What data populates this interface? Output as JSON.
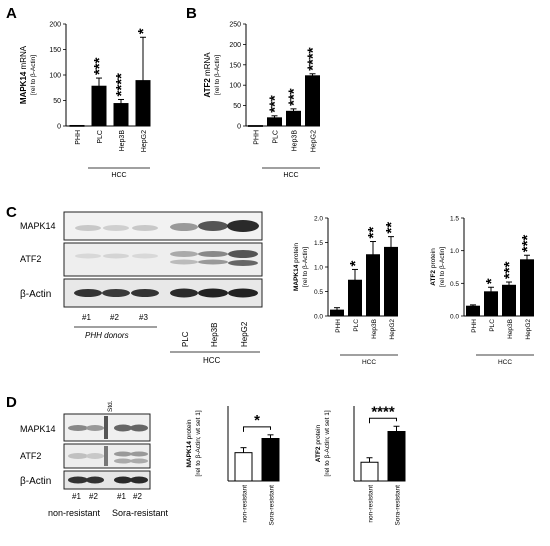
{
  "panels": {
    "A": "A",
    "B": "B",
    "C": "C",
    "D": "D"
  },
  "chart_data": [
    {
      "id": "A",
      "type": "bar",
      "ylabel_bold": "MAPK14",
      "ylabel_rest": " mRNA",
      "ylabel_sub": "[rel to β-Actin]",
      "categories": [
        "PHH",
        "PLC",
        "Hep3B",
        "HepG2"
      ],
      "values": [
        1,
        78,
        44,
        89
      ],
      "errors": [
        0,
        16,
        8,
        85
      ],
      "significance": [
        "",
        "***",
        "****",
        "*"
      ],
      "yticks": [
        0,
        50,
        100,
        150,
        200
      ],
      "ylim": [
        0,
        200
      ],
      "group_label": "HCC"
    },
    {
      "id": "B",
      "type": "bar",
      "ylabel_bold": "ATF2",
      "ylabel_rest": " mRNA",
      "ylabel_sub": "[rel to β-Actin]",
      "categories": [
        "PHH",
        "PLC",
        "Hep3B",
        "HepG2"
      ],
      "values": [
        1,
        20,
        36,
        123
      ],
      "errors": [
        0,
        5,
        6,
        5
      ],
      "significance": [
        "",
        "***",
        "***",
        "****"
      ],
      "yticks": [
        0,
        50,
        100,
        150,
        200,
        250
      ],
      "ylim": [
        0,
        250
      ],
      "group_label": "HCC"
    },
    {
      "id": "C1",
      "type": "bar",
      "ylabel_bold": "MAPK14",
      "ylabel_rest": " protein",
      "ylabel_sub": "[rel to β-Actin]",
      "categories": [
        "PHH",
        "PLC",
        "Hep3B",
        "HepG2"
      ],
      "values": [
        0.12,
        0.73,
        1.25,
        1.4
      ],
      "errors": [
        0.05,
        0.22,
        0.27,
        0.22
      ],
      "significance": [
        "",
        "*",
        "**",
        "**"
      ],
      "yticks": [
        "0.0",
        "0.5",
        "1.0",
        "1.5",
        "2.0"
      ],
      "ylim": [
        0,
        2
      ],
      "group_label": "HCC"
    },
    {
      "id": "C2",
      "type": "bar",
      "ylabel_bold": "ATF2",
      "ylabel_rest": " protein",
      "ylabel_sub": "[rel to β-Actin]",
      "categories": [
        "PHH",
        "PLC",
        "Hep3B",
        "HepG2"
      ],
      "values": [
        0.15,
        0.37,
        0.47,
        0.86
      ],
      "errors": [
        0.02,
        0.07,
        0.05,
        0.07
      ],
      "significance": [
        "",
        "*",
        "***",
        "***"
      ],
      "yticks": [
        "0.0",
        "0.5",
        "1.0",
        "1.5"
      ],
      "ylim": [
        0,
        1.5
      ],
      "group_label": "HCC"
    },
    {
      "id": "D1",
      "type": "bar",
      "ylabel_bold": "MAPK14",
      "ylabel_rest": " protein",
      "ylabel_sub": "[rel to β-Actin; wt set 1]",
      "categories": [
        "non-resistant",
        "Sora-resistant"
      ],
      "values": [
        1.7,
        2.55
      ],
      "errors": [
        0.3,
        0.22
      ],
      "significance": [
        "*"
      ],
      "yticks": [],
      "ylim": [
        0,
        4.5
      ]
    },
    {
      "id": "D2",
      "type": "bar",
      "ylabel_bold": "ATF2",
      "ylabel_rest": " protein",
      "ylabel_sub": "[rel to β-Actin; wt set 1]",
      "categories": [
        "non-resistant",
        "Sora-resistant"
      ],
      "values": [
        1.25,
        3.3
      ],
      "errors": [
        0.3,
        0.35
      ],
      "significance": [
        "****"
      ],
      "yticks": [],
      "ylim": [
        0,
        5
      ]
    }
  ],
  "blot_c": {
    "rows": [
      "MAPK14",
      "ATF2",
      "β-Actin"
    ],
    "lanes_small": [
      "#1",
      "#2",
      "#3"
    ],
    "lanes_rot": [
      "PLC",
      "Hep3B",
      "HepG2"
    ],
    "group1": "PHH donors",
    "group2": "HCC"
  },
  "blot_d": {
    "rows": [
      "MAPK14",
      "ATF2",
      "β-Actin"
    ],
    "std": "Std.",
    "lanes": [
      "#1",
      "#2",
      "#1",
      "#2"
    ],
    "group1": "non-resistant",
    "group2": "Sora-resistant"
  }
}
